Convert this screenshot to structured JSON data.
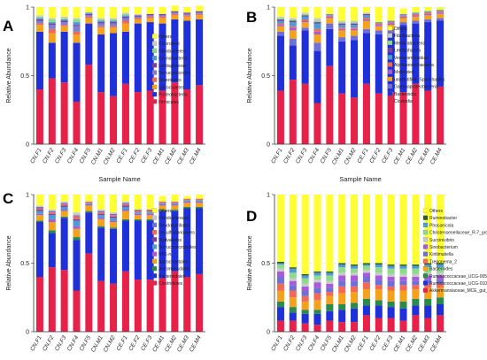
{
  "chart_data": [
    {
      "panel_letter": "A",
      "type": "bar",
      "stacked": true,
      "xlabel": "Sample Name",
      "ylabel": "Relative Abundance",
      "ylim": [
        0,
        1
      ],
      "yticks": [
        "0",
        "0.5",
        "1"
      ],
      "categories": [
        "CN.F1",
        "CN.F2",
        "CN.F3",
        "CN.F4",
        "CN.F5",
        "CN.M1",
        "CN.M2",
        "CE.F1",
        "CE.F2",
        "CE.F3",
        "CE.M1",
        "CE.M2",
        "CE.M3",
        "CE.M4"
      ],
      "legend_position": "right",
      "series": [
        {
          "name": "Firmicutes",
          "color": "#e8214a",
          "values": [
            0.4,
            0.48,
            0.45,
            0.31,
            0.58,
            0.38,
            0.35,
            0.44,
            0.38,
            0.39,
            0.39,
            0.45,
            0.4,
            0.43
          ]
        },
        {
          "name": "Proteobacteria",
          "color": "#1f2fd9",
          "values": [
            0.42,
            0.26,
            0.37,
            0.43,
            0.3,
            0.42,
            0.46,
            0.38,
            0.5,
            0.5,
            0.49,
            0.46,
            0.5,
            0.48
          ]
        },
        {
          "name": "Spirochaetes",
          "color": "#f4a21e",
          "values": [
            0.05,
            0.07,
            0.04,
            0.06,
            0.04,
            0.05,
            0.04,
            0.06,
            0.03,
            0.03,
            0.04,
            0.03,
            0.03,
            0.03
          ]
        },
        {
          "name": "Tenericutes",
          "color": "#f26a55",
          "values": [
            0.01,
            0.03,
            0.01,
            0.02,
            0.01,
            0.01,
            0.01,
            0.02,
            0.01,
            0.01,
            0.01,
            0.01,
            0.01,
            0.01
          ]
        },
        {
          "name": "Verrucomicrobia",
          "color": "#7f7fcf",
          "values": [
            0.02,
            0.03,
            0.02,
            0.04,
            0.01,
            0.02,
            0.02,
            0.02,
            0.01,
            0.01,
            0.01,
            0.01,
            0.01,
            0.01
          ]
        },
        {
          "name": "Lentisphaerae",
          "color": "#7a3fa0",
          "values": [
            0.01,
            0.01,
            0.01,
            0.01,
            0.01,
            0.01,
            0.01,
            0.01,
            0.01,
            0.01,
            0.01,
            0.01,
            0.01,
            0.01
          ]
        },
        {
          "name": "Cyanobacteria",
          "color": "#4c9bd6",
          "values": [
            0.01,
            0.01,
            0.01,
            0.02,
            0.01,
            0.01,
            0.01,
            0.01,
            0.0,
            0.0,
            0.0,
            0.0,
            0.0,
            0.0
          ]
        },
        {
          "name": "Fibrobacteres",
          "color": "#8fd98f",
          "values": [
            0.01,
            0.02,
            0.01,
            0.02,
            0.0,
            0.01,
            0.01,
            0.01,
            0.0,
            0.0,
            0.0,
            0.0,
            0.0,
            0.0
          ]
        },
        {
          "name": "Chloroflexi",
          "color": "#c9c9c9",
          "values": [
            0.01,
            0.01,
            0.01,
            0.01,
            0.0,
            0.01,
            0.01,
            0.01,
            0.01,
            0.0,
            0.0,
            0.0,
            0.0,
            0.0
          ]
        },
        {
          "name": "Others",
          "color": "#ffff33",
          "values": [
            0.06,
            0.08,
            0.07,
            0.08,
            0.04,
            0.08,
            0.08,
            0.04,
            0.05,
            0.05,
            0.05,
            0.04,
            0.04,
            0.04
          ]
        }
      ]
    },
    {
      "panel_letter": "B",
      "type": "bar",
      "stacked": true,
      "xlabel": "Sample Name",
      "ylabel": "Relative Abundance",
      "ylim": [
        0,
        1
      ],
      "yticks": [
        "0",
        "0.5",
        "1"
      ],
      "categories": [
        "CN.F1",
        "CN.F2",
        "CN.F3",
        "CN.F4",
        "CN.F5",
        "CN.M1",
        "CN.M2",
        "CE.F1",
        "CE.F2",
        "CE.F3",
        "CE.M1",
        "CE.M2",
        "CE.M3",
        "CE.M4"
      ],
      "legend_position": "right",
      "series": [
        {
          "name": "Clostridia",
          "color": "#e8214a",
          "values": [
            0.39,
            0.47,
            0.44,
            0.3,
            0.57,
            0.37,
            0.34,
            0.44,
            0.37,
            0.38,
            0.38,
            0.44,
            0.39,
            0.42
          ]
        },
        {
          "name": "Bacteroidia",
          "color": "#1f2fd9",
          "values": [
            0.4,
            0.25,
            0.39,
            0.38,
            0.27,
            0.38,
            0.42,
            0.37,
            0.43,
            0.43,
            0.49,
            0.44,
            0.5,
            0.48
          ]
        },
        {
          "name": "Gammaproteobacteria",
          "color": "#6f6fd8",
          "values": [
            0.03,
            0.05,
            0.02,
            0.06,
            0.04,
            0.03,
            0.03,
            0.03,
            0.03,
            0.03,
            0.02,
            0.02,
            0.02,
            0.02
          ]
        },
        {
          "name": "unidentified_Spirochaetes",
          "color": "#f4a21e",
          "values": [
            0.04,
            0.06,
            0.04,
            0.06,
            0.04,
            0.05,
            0.04,
            0.06,
            0.03,
            0.03,
            0.03,
            0.03,
            0.03,
            0.03
          ]
        },
        {
          "name": "Mollicutes",
          "color": "#a85ad8",
          "values": [
            0.01,
            0.02,
            0.01,
            0.02,
            0.01,
            0.01,
            0.01,
            0.01,
            0.01,
            0.01,
            0.01,
            0.01,
            0.01,
            0.01
          ]
        },
        {
          "name": "Alphaproteobacteria",
          "color": "#f26a55",
          "values": [
            0.01,
            0.01,
            0.01,
            0.02,
            0.01,
            0.01,
            0.01,
            0.01,
            0.01,
            0.01,
            0.01,
            0.01,
            0.01,
            0.01
          ]
        },
        {
          "name": "Verrucomicrobiae",
          "color": "#4c9bd6",
          "values": [
            0.02,
            0.03,
            0.02,
            0.04,
            0.01,
            0.02,
            0.02,
            0.02,
            0.01,
            0.01,
            0.01,
            0.01,
            0.01,
            0.01
          ]
        },
        {
          "name": "Lentisphaeria",
          "color": "#7a3fa0",
          "values": [
            0.01,
            0.01,
            0.01,
            0.01,
            0.0,
            0.01,
            0.01,
            0.01,
            0.0,
            0.0,
            0.0,
            0.0,
            0.0,
            0.0
          ]
        },
        {
          "name": "Melainabacteria",
          "color": "#8fd98f",
          "values": [
            0.01,
            0.01,
            0.01,
            0.01,
            0.0,
            0.01,
            0.01,
            0.0,
            0.0,
            0.0,
            0.0,
            0.0,
            0.0,
            0.0
          ]
        },
        {
          "name": "Fibrobacteria",
          "color": "#c9c9c9",
          "values": [
            0.01,
            0.01,
            0.01,
            0.02,
            0.0,
            0.01,
            0.01,
            0.01,
            0.0,
            0.0,
            0.0,
            0.0,
            0.0,
            0.0
          ]
        },
        {
          "name": "Others",
          "color": "#ffff33",
          "values": [
            0.07,
            0.08,
            0.04,
            0.08,
            0.05,
            0.1,
            0.1,
            0.04,
            0.11,
            0.1,
            0.04,
            0.04,
            0.03,
            0.02
          ]
        }
      ]
    },
    {
      "panel_letter": "C",
      "type": "bar",
      "stacked": true,
      "xlabel": "Sample Name",
      "ylabel": "Relative Abundance",
      "ylim": [
        0,
        1
      ],
      "yticks": [
        "0",
        "0.5",
        "1"
      ],
      "categories": [
        "CN.F1",
        "CN.F2",
        "CN.F3",
        "CN.F4",
        "CN.F5",
        "CN.M1",
        "CN.M2",
        "CE.F1",
        "CE.F2",
        "CE.F3",
        "CE.M1",
        "CE.M2",
        "CE.M3",
        "CE.M4"
      ],
      "legend_position": "right",
      "series": [
        {
          "name": "Clostridiales",
          "color": "#e8214a",
          "values": [
            0.4,
            0.47,
            0.45,
            0.3,
            0.57,
            0.37,
            0.35,
            0.44,
            0.38,
            0.38,
            0.39,
            0.44,
            0.4,
            0.42
          ]
        },
        {
          "name": "Bacteroidales",
          "color": "#1f2fd9",
          "values": [
            0.4,
            0.25,
            0.38,
            0.37,
            0.3,
            0.39,
            0.4,
            0.37,
            0.43,
            0.43,
            0.49,
            0.44,
            0.5,
            0.48
          ]
        },
        {
          "name": "Aeromonadales",
          "color": "#2a8a4a",
          "values": [
            0.01,
            0.02,
            0.01,
            0.02,
            0.01,
            0.01,
            0.01,
            0.01,
            0.01,
            0.01,
            0.01,
            0.01,
            0.01,
            0.01
          ]
        },
        {
          "name": "Spirochaetales",
          "color": "#f4a21e",
          "values": [
            0.04,
            0.06,
            0.04,
            0.06,
            0.04,
            0.05,
            0.04,
            0.06,
            0.03,
            0.03,
            0.03,
            0.03,
            0.03,
            0.03
          ]
        },
        {
          "name": "NB1-n",
          "color": "#a85ad8",
          "values": [
            0.01,
            0.02,
            0.01,
            0.02,
            0.01,
            0.01,
            0.01,
            0.01,
            0.01,
            0.01,
            0.01,
            0.01,
            0.01,
            0.01
          ]
        },
        {
          "name": "Verrucomicrobiales",
          "color": "#4c9bd6",
          "values": [
            0.02,
            0.03,
            0.02,
            0.04,
            0.01,
            0.02,
            0.02,
            0.02,
            0.01,
            0.01,
            0.01,
            0.01,
            0.01,
            0.01
          ]
        },
        {
          "name": "Victivallales",
          "color": "#7a3fa0",
          "values": [
            0.01,
            0.01,
            0.01,
            0.01,
            0.0,
            0.01,
            0.01,
            0.01,
            0.0,
            0.0,
            0.0,
            0.0,
            0.0,
            0.0
          ]
        },
        {
          "name": "Desulfovibrionales",
          "color": "#f26a55",
          "values": [
            0.01,
            0.01,
            0.01,
            0.02,
            0.01,
            0.01,
            0.01,
            0.01,
            0.01,
            0.01,
            0.01,
            0.01,
            0.01,
            0.01
          ]
        },
        {
          "name": "Rhodospirillales",
          "color": "#6f6fd8",
          "values": [
            0.01,
            0.01,
            0.01,
            0.01,
            0.0,
            0.01,
            0.01,
            0.01,
            0.01,
            0.01,
            0.0,
            0.0,
            0.0,
            0.0
          ]
        },
        {
          "name": "Fibrobacterales",
          "color": "#c9c9c9",
          "values": [
            0.01,
            0.01,
            0.01,
            0.02,
            0.0,
            0.01,
            0.01,
            0.01,
            0.0,
            0.0,
            0.0,
            0.0,
            0.0,
            0.0
          ]
        },
        {
          "name": "Others",
          "color": "#ffff33",
          "values": [
            0.08,
            0.11,
            0.05,
            0.13,
            0.05,
            0.11,
            0.13,
            0.05,
            0.11,
            0.11,
            0.04,
            0.05,
            0.02,
            0.03
          ]
        }
      ]
    },
    {
      "panel_letter": "D",
      "type": "bar",
      "stacked": true,
      "xlabel": "Sample Name",
      "ylabel": "Relative Abundance",
      "ylim": [
        0,
        1
      ],
      "yticks": [
        "0",
        "0.5",
        "1"
      ],
      "categories": [
        "CN.F1",
        "CN.F2",
        "CN.F3",
        "CN.F4",
        "CN.F5",
        "CN.M1",
        "CN.M2",
        "CE.F1",
        "CE.F2",
        "CE.F3",
        "CE.M1",
        "CE.M2",
        "CE.M3",
        "CE.M4"
      ],
      "legend_position": "right",
      "series": [
        {
          "name": "Akkermansiaceae_MCE_gut_group",
          "color": "#e8214a",
          "values": [
            0.08,
            0.08,
            0.06,
            0.05,
            0.08,
            0.07,
            0.07,
            0.12,
            0.1,
            0.1,
            0.08,
            0.12,
            0.1,
            0.12
          ]
        },
        {
          "name": "Ruminococcaceae_UCG-010",
          "color": "#1f2fd9",
          "values": [
            0.1,
            0.06,
            0.07,
            0.08,
            0.07,
            0.09,
            0.1,
            0.07,
            0.09,
            0.08,
            0.09,
            0.07,
            0.09,
            0.08
          ]
        },
        {
          "name": "Ruminococcaceae_UCG-005",
          "color": "#2a8a4a",
          "values": [
            0.04,
            0.04,
            0.03,
            0.03,
            0.05,
            0.04,
            0.04,
            0.05,
            0.04,
            0.04,
            0.05,
            0.05,
            0.05,
            0.05
          ]
        },
        {
          "name": "Bacteroides",
          "color": "#f4a21e",
          "values": [
            0.08,
            0.07,
            0.06,
            0.07,
            0.06,
            0.08,
            0.08,
            0.07,
            0.08,
            0.08,
            0.08,
            0.07,
            0.08,
            0.07
          ]
        },
        {
          "name": "Treponema_2",
          "color": "#f26a55",
          "values": [
            0.05,
            0.05,
            0.04,
            0.05,
            0.03,
            0.05,
            0.04,
            0.05,
            0.03,
            0.03,
            0.04,
            0.03,
            0.03,
            0.03
          ]
        },
        {
          "name": "Kiritimatiella",
          "color": "#6f6fd8",
          "values": [
            0.05,
            0.04,
            0.04,
            0.04,
            0.03,
            0.04,
            0.04,
            0.04,
            0.04,
            0.04,
            0.03,
            0.03,
            0.03,
            0.03
          ]
        },
        {
          "name": "Sinobacterium",
          "color": "#a85ad8",
          "values": [
            0.04,
            0.03,
            0.03,
            0.04,
            0.03,
            0.04,
            0.04,
            0.03,
            0.03,
            0.03,
            0.03,
            0.03,
            0.03,
            0.03
          ]
        },
        {
          "name": "Succinivibrio",
          "color": "#c9c9c9",
          "values": [
            0.02,
            0.02,
            0.02,
            0.02,
            0.02,
            0.02,
            0.02,
            0.02,
            0.02,
            0.02,
            0.02,
            0.02,
            0.02,
            0.02
          ]
        },
        {
          "name": "Christensenellaceae_R-7_group",
          "color": "#8fd98f",
          "values": [
            0.03,
            0.04,
            0.04,
            0.03,
            0.04,
            0.04,
            0.03,
            0.03,
            0.04,
            0.04,
            0.04,
            0.04,
            0.04,
            0.04
          ]
        },
        {
          "name": "Phocaeicola",
          "color": "#4c9bd6",
          "values": [
            0.01,
            0.03,
            0.02,
            0.02,
            0.02,
            0.02,
            0.02,
            0.01,
            0.02,
            0.02,
            0.02,
            0.02,
            0.02,
            0.02
          ]
        },
        {
          "name": "Ruminobacter",
          "color": "#2e5c22",
          "values": [
            0.01,
            0.01,
            0.01,
            0.01,
            0.01,
            0.01,
            0.01,
            0.01,
            0.01,
            0.01,
            0.01,
            0.01,
            0.01,
            0.01
          ]
        },
        {
          "name": "Others",
          "color": "#ffff33",
          "values": [
            0.49,
            0.53,
            0.58,
            0.56,
            0.56,
            0.5,
            0.51,
            0.5,
            0.5,
            0.51,
            0.51,
            0.51,
            0.5,
            0.5
          ]
        }
      ]
    }
  ]
}
